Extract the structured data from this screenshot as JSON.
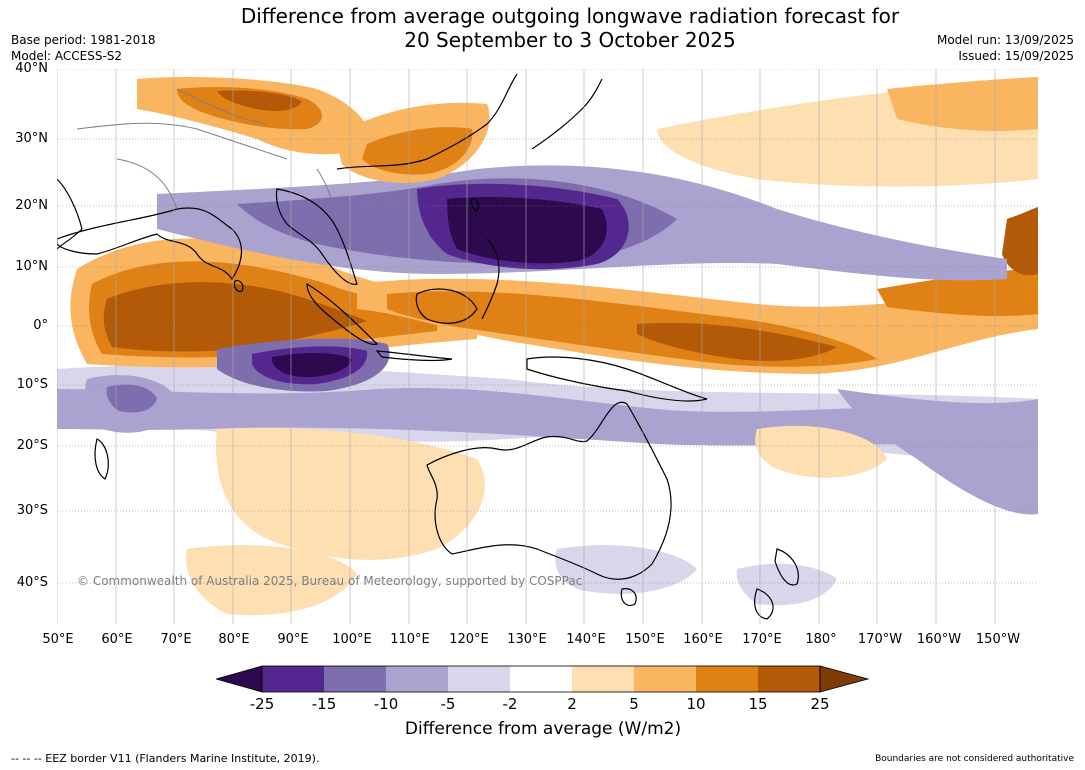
{
  "title_line1": "Difference from average outgoing longwave radiation forecast for",
  "title_line2": "20 September to 3 October 2025",
  "base_period": "Base period: 1981-2018",
  "model": "Model: ACCESS-S2",
  "model_run": "Model run: 13/09/2025",
  "issued": "Issued: 15/09/2025",
  "lat_labels": [
    "40°N",
    "30°N",
    "20°N",
    "10°N",
    "0°",
    "10°S",
    "20°S",
    "30°S",
    "40°S"
  ],
  "lon_labels": [
    "50°E",
    "60°E",
    "70°E",
    "80°E",
    "90°E",
    "100°E",
    "110°E",
    "120°E",
    "130°E",
    "140°E",
    "150°E",
    "160°E",
    "170°E",
    "180°",
    "170°W",
    "160°W",
    "150°W"
  ],
  "copyright": "© Commonwealth of Australia 2025, Bureau of Meteorology, supported by COSPPac",
  "colorbar": {
    "ticks": [
      "-25",
      "-15",
      "-10",
      "-5",
      "-2",
      "2",
      "5",
      "10",
      "15",
      "25"
    ],
    "colors": [
      "#2d0a4e",
      "#54278f",
      "#7f6eae",
      "#aaa3cf",
      "#d7d6ea",
      "#ffffff",
      "#fddfb2",
      "#fab560",
      "#e08116",
      "#b25a07",
      "#7f3b08"
    ],
    "title": "Difference from average (W/m2)"
  },
  "footer_left": "--  --  -- EEZ border V11 (Flanders Marine Institute, 2019).",
  "footer_right": "Boundaries are not considered authoritative"
}
